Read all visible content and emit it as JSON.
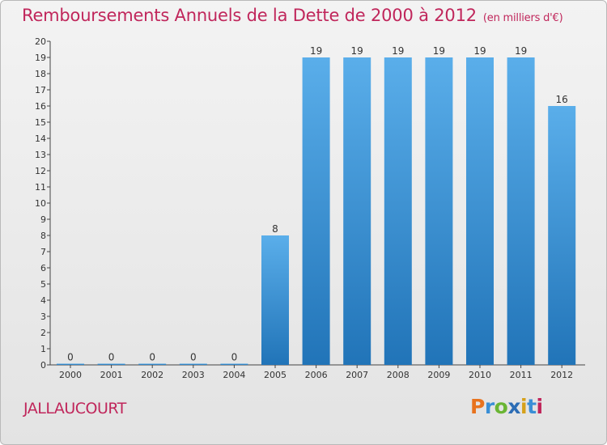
{
  "header": {
    "title": "Remboursements Annuels de la Dette de 2000 à 2012",
    "subtitle": "(en milliers d'€)"
  },
  "footer": {
    "commune": "JALLAUCOURT",
    "logo": "Proxiti"
  },
  "colors": {
    "title": "#c0265b",
    "bar_top": "#5aaeea",
    "bar_bottom": "#2174b8"
  },
  "chart_data": {
    "type": "bar",
    "title": "Remboursements Annuels de la Dette de 2000 à 2012",
    "xlabel": "",
    "ylabel": "",
    "categories": [
      "2000",
      "2001",
      "2002",
      "2003",
      "2004",
      "2005",
      "2006",
      "2007",
      "2008",
      "2009",
      "2010",
      "2011",
      "2012"
    ],
    "values": [
      0,
      0,
      0,
      0,
      0,
      8,
      19,
      19,
      19,
      19,
      19,
      19,
      16
    ],
    "data_labels": [
      "0",
      "0",
      "0",
      "0",
      "0",
      "8",
      "19",
      "19",
      "19",
      "19",
      "19",
      "19",
      "16"
    ],
    "ylim": [
      0,
      20
    ],
    "yticks": [
      0,
      1,
      2,
      3,
      4,
      5,
      6,
      7,
      8,
      9,
      10,
      11,
      12,
      13,
      14,
      15,
      16,
      17,
      18,
      19,
      20
    ],
    "grid": false,
    "legend": "none"
  }
}
